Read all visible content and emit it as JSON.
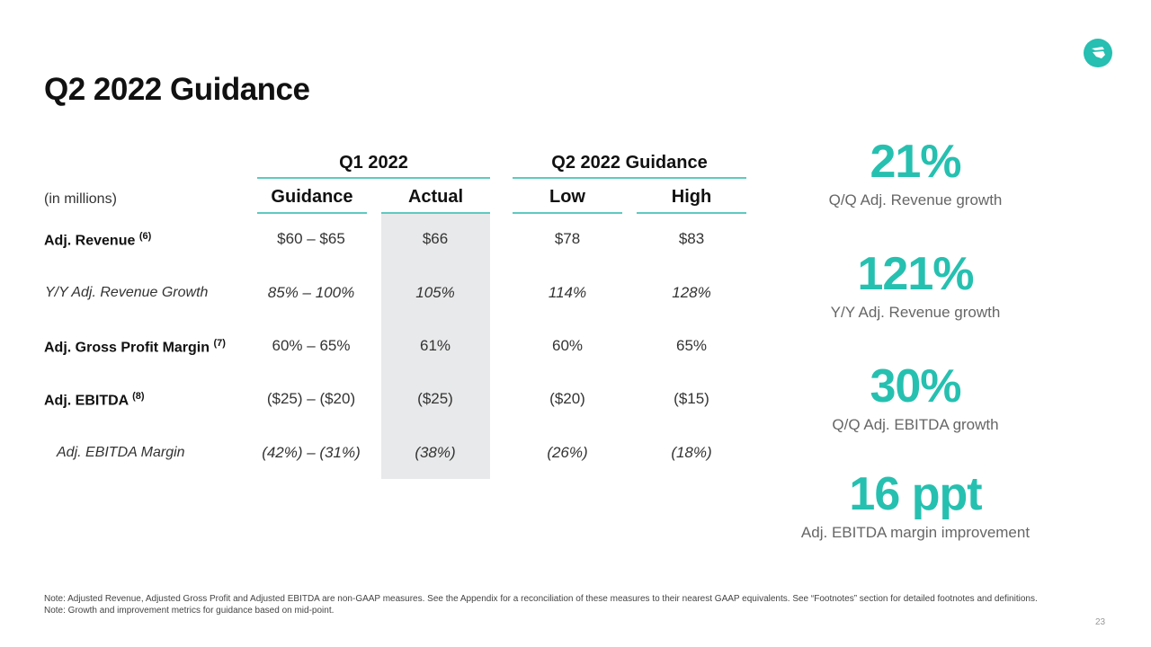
{
  "title": "Q2 2022 Guidance",
  "logo": "moneylion-logo",
  "table": {
    "unit": "(in millions)",
    "groups": [
      "Q1 2022",
      "Q2 2022 Guidance"
    ],
    "columns": [
      "Guidance",
      "Actual",
      "Low",
      "High"
    ],
    "rows": [
      {
        "label": "Adj. Revenue",
        "note": "(6)",
        "values": [
          "$60 – $65",
          "$66",
          "$78",
          "$83"
        ]
      },
      {
        "label": "Y/Y Adj. Revenue Growth",
        "note": "",
        "values": [
          "85% – 100%",
          "105%",
          "114%",
          "128%"
        ]
      },
      {
        "label": "Adj. Gross Profit Margin",
        "note": "(7)",
        "values": [
          "60% – 65%",
          "61%",
          "60%",
          "65%"
        ]
      },
      {
        "label": "Adj. EBITDA",
        "note": "(8)",
        "values": [
          "($25) – ($20)",
          "($25)",
          "($20)",
          "($15)"
        ]
      },
      {
        "label": "Adj. EBITDA Margin",
        "note": "",
        "values": [
          "(42%) – (31%)",
          "(38%)",
          "(26%)",
          "(18%)"
        ]
      }
    ]
  },
  "stats": [
    {
      "value": "21%",
      "caption": "Q/Q Adj. Revenue growth"
    },
    {
      "value": "121%",
      "caption": "Y/Y Adj. Revenue growth"
    },
    {
      "value": "30%",
      "caption": "Q/Q Adj. EBITDA growth"
    },
    {
      "value": "16 ppt",
      "caption": "Adj. EBITDA margin improvement"
    }
  ],
  "notes": [
    "Note: Adjusted Revenue, Adjusted Gross Profit and Adjusted EBITDA are non-GAAP measures. See the Appendix for a reconciliation of these measures to their nearest GAAP equivalents. See “Footnotes” section for detailed footnotes and definitions.",
    "Note: Growth and improvement metrics for guidance based on mid-point."
  ],
  "page_number": "23",
  "colors": {
    "accent": "#26c0b0",
    "shade": "#e8e9ea"
  }
}
